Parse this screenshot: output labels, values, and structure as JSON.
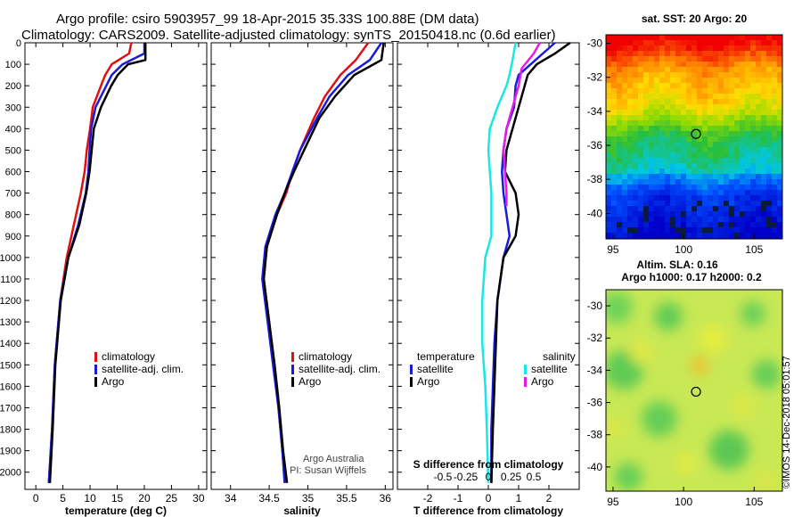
{
  "header": {
    "line1": "Argo profile: csiro 5903957_99 18-Apr-2015 35.33S 100.88E (DM data)",
    "line2": "Climatology: CARS2009. Satellite-adjusted climatology: synTS_20150418.nc (0.6d earlier)"
  },
  "colors": {
    "climatology": "#e01010",
    "satellite_adj": "#1a1adc",
    "argo": "#000000",
    "sat_salinity": "#19e6e6",
    "sat_magenta": "#e619e6"
  },
  "stamp": "©IMOS 14-Dec-2018 05:01:57",
  "chart_data": [
    {
      "type": "line",
      "id": "temp",
      "title": "",
      "xlabel": "temperature (deg C)",
      "ylabel": "",
      "xlim": [
        -2,
        31.5
      ],
      "ylim": [
        2080,
        0
      ],
      "xticks": [
        0,
        5,
        10,
        15,
        20,
        25,
        30
      ],
      "xticklabels": [
        "0",
        "5",
        "10",
        "15",
        "20",
        "25",
        "30"
      ],
      "yticks": [
        0,
        100,
        200,
        300,
        400,
        500,
        600,
        700,
        800,
        900,
        1000,
        1100,
        1200,
        1300,
        1400,
        1500,
        1600,
        1700,
        1800,
        1900,
        2000
      ],
      "legend": [
        "climatology",
        "satellite-adj. clim.",
        "Argo"
      ],
      "series": [
        {
          "name": "climatology",
          "color": "#e01010",
          "x": [
            17.6,
            17.2,
            14,
            12.8,
            12,
            10.5,
            10,
            9.4,
            9,
            8.3,
            7,
            5.7,
            4.5,
            3.5,
            3.0,
            2.4
          ],
          "y": [
            0,
            50,
            100,
            150,
            200,
            300,
            400,
            500,
            600,
            700,
            850,
            1000,
            1200,
            1500,
            1800,
            2050
          ]
        },
        {
          "name": "satellite-adj. clim.",
          "color": "#1a1adc",
          "x": [
            20,
            20,
            16,
            14,
            13,
            11,
            10.2,
            9.9,
            9.7,
            9.2,
            7.8,
            6,
            4.5,
            3.5,
            3.0,
            2.4
          ],
          "y": [
            0,
            50,
            100,
            150,
            200,
            300,
            400,
            500,
            600,
            700,
            850,
            1000,
            1200,
            1500,
            1800,
            2050
          ]
        },
        {
          "name": "Argo",
          "color": "#000000",
          "x": [
            20.2,
            20.2,
            17,
            15.1,
            13.9,
            12,
            10.7,
            10.3,
            9.9,
            9.3,
            8,
            6,
            4.6,
            3.6,
            3.1,
            2.6
          ],
          "y": [
            0,
            80,
            100,
            150,
            200,
            300,
            400,
            500,
            600,
            700,
            850,
            1000,
            1200,
            1500,
            1800,
            2050
          ]
        }
      ]
    },
    {
      "type": "line",
      "id": "sal",
      "title": "",
      "xlabel": "salinity",
      "ylabel": "",
      "xlim": [
        33.75,
        36.1
      ],
      "ylim": [
        2080,
        0
      ],
      "xticks": [
        34,
        34.5,
        35,
        35.5,
        36
      ],
      "xticklabels": [
        "34",
        "34.5",
        "35",
        "35.5",
        "36"
      ],
      "legend": [
        "climatology",
        "satellite-adj. clim.",
        "Argo"
      ],
      "annotation": [
        "Argo Australia",
        "PI: Susan Wijffels"
      ],
      "series": [
        {
          "name": "climatology",
          "color": "#e01010",
          "x": [
            35.78,
            35.62,
            35.42,
            35.22,
            35.08,
            34.9,
            34.8,
            34.72,
            34.6,
            34.47,
            34.43,
            34.5,
            34.56,
            34.62,
            34.67,
            34.7
          ],
          "y": [
            0,
            80,
            150,
            250,
            350,
            500,
            600,
            700,
            800,
            950,
            1100,
            1300,
            1500,
            1700,
            1900,
            2050
          ]
        },
        {
          "name": "satellite-adj. clim.",
          "color": "#1a1adc",
          "x": [
            35.95,
            35.8,
            35.52,
            35.28,
            35.12,
            34.9,
            34.8,
            34.7,
            34.58,
            34.45,
            34.41,
            34.48,
            34.55,
            34.62,
            34.67,
            34.7
          ],
          "y": [
            0,
            80,
            150,
            250,
            350,
            500,
            600,
            700,
            800,
            950,
            1100,
            1300,
            1500,
            1700,
            1900,
            2050
          ]
        },
        {
          "name": "Argo",
          "color": "#000000",
          "x": [
            35.98,
            35.95,
            35.6,
            35.35,
            35.15,
            34.95,
            34.82,
            34.7,
            34.6,
            34.47,
            34.43,
            34.5,
            34.57,
            34.63,
            34.68,
            34.73
          ],
          "y": [
            0,
            80,
            150,
            250,
            350,
            500,
            600,
            700,
            800,
            950,
            1100,
            1300,
            1500,
            1700,
            1900,
            2050
          ]
        }
      ]
    },
    {
      "type": "line",
      "id": "diff",
      "title": "",
      "xlabel": "T difference from climatology",
      "xlabel_top": "S difference from climatology",
      "xlim": [
        -3,
        3
      ],
      "ylim": [
        2080,
        0
      ],
      "xticks": [
        -2,
        -1,
        0,
        1,
        2
      ],
      "xticklabels": [
        "-2",
        "-1",
        "0",
        "1",
        "2"
      ],
      "sxticks": [
        -1.5,
        -0.75,
        0,
        0.75,
        1.5
      ],
      "sxticklabels": [
        "-0.5",
        "-0.25",
        "0",
        "0.25",
        "0.5"
      ],
      "legend_left_title": "temperature",
      "legend_left": [
        "satellite",
        "Argo"
      ],
      "legend_right_title": "salinity",
      "legend_right": [
        "satellite",
        "Argo"
      ],
      "series": [
        {
          "name": "temperature satellite",
          "color": "#1a1adc",
          "x": [
            2.2,
            1.8,
            1.4,
            1.0,
            0.9,
            0.85,
            0.6,
            0.5,
            0.45,
            0.5,
            0.6,
            0.7,
            0.5,
            0.3,
            0.2,
            0.15,
            0.1,
            0.1
          ],
          "y": [
            0,
            50,
            100,
            150,
            200,
            300,
            400,
            500,
            600,
            700,
            800,
            900,
            1000,
            1200,
            1400,
            1600,
            1800,
            2050
          ]
        },
        {
          "name": "temperature Argo",
          "color": "#000000",
          "x": [
            2.7,
            2.2,
            1.6,
            1.3,
            1.2,
            1.0,
            0.8,
            0.6,
            0.55,
            0.9,
            1.0,
            0.9,
            0.5,
            0.3,
            0.25,
            0.2,
            0.15,
            0.1
          ],
          "y": [
            0,
            50,
            100,
            150,
            200,
            300,
            400,
            500,
            600,
            700,
            800,
            900,
            1000,
            1200,
            1400,
            1600,
            1800,
            2050
          ]
        },
        {
          "name": "salinity satellite",
          "color": "#19e6e6",
          "x": [
            0.9,
            0.8,
            0.7,
            0.6,
            0.3,
            0.05,
            0.0,
            0.05,
            0.1,
            0.1,
            0.1,
            -0.1,
            -0.2,
            -0.2,
            -0.1,
            -0.05,
            0.0
          ],
          "y": [
            0,
            80,
            150,
            200,
            300,
            400,
            500,
            600,
            700,
            800,
            900,
            1000,
            1200,
            1400,
            1600,
            1800,
            2050
          ]
        },
        {
          "name": "salinity Argo",
          "color": "#e619e6",
          "x": [
            1.7,
            1.5,
            1.1,
            1.0,
            0.8,
            0.6,
            0.5,
            0.55,
            0.6,
            0.6
          ],
          "y": [
            0,
            50,
            120,
            200,
            300,
            400,
            500,
            600,
            700,
            760
          ]
        }
      ]
    },
    {
      "type": "heatmap",
      "id": "sst",
      "title": "sat. SST: 20 Argo: 20",
      "xlim": [
        94.5,
        107
      ],
      "ylim": [
        -41.5,
        -29.5
      ],
      "xticks": [
        95,
        100,
        105
      ],
      "yticks": [
        -30,
        -32,
        -34,
        -36,
        -38,
        -40
      ],
      "marker": {
        "lon": 100.88,
        "lat": -35.33
      }
    },
    {
      "type": "heatmap",
      "id": "sla",
      "title": "Altim. SLA: 0.16",
      "subtitle": "Argo h1000: 0.17 h2000: 0.2",
      "xlim": [
        94.5,
        107
      ],
      "ylim": [
        -41.5,
        -29
      ],
      "xticks": [
        95,
        100,
        105
      ],
      "yticks": [
        -30,
        -32,
        -34,
        -36,
        -38,
        -40
      ],
      "marker": {
        "lon": 100.88,
        "lat": -35.33
      }
    }
  ]
}
